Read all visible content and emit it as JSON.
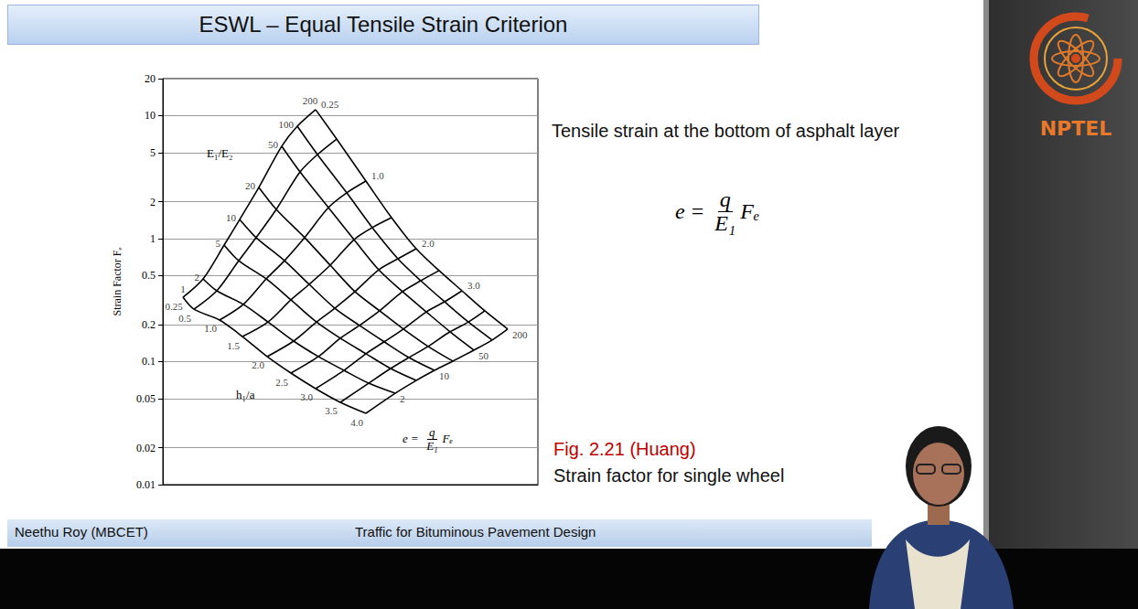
{
  "slide": {
    "title": "ESWL – Equal Tensile Strain Criterion",
    "description": "Tensile strain at the bottom of asphalt layer",
    "formula": {
      "lhs": "e",
      "relation": "=",
      "numerator": "q",
      "denominator": "E₁",
      "factor": "Fₑ"
    },
    "figure_ref": "Fig. 2.21 (Huang)",
    "caption": "Strain factor for single wheel",
    "footer_left": "Neethu Roy (MBCET)",
    "footer_center": "Traffic for Bituminous Pavement Design",
    "logo_text": "NPTEL"
  },
  "chart_data": {
    "type": "line",
    "y_label": "Strain Factor Fₑ",
    "log": "y",
    "grid": true,
    "tick_labels": "y",
    "color": "#000000",
    "xlim": [
      0,
      410
    ],
    "ylim": [
      0.01,
      20
    ],
    "yticks": [
      0.01,
      0.02,
      0.05,
      0.1,
      0.2,
      0.5,
      1,
      2,
      5,
      10,
      20
    ],
    "e1_e2_title": "E₁/E₂",
    "h1_a_title": "h₁/a",
    "h1_a_labels": [
      "0.25",
      "0.5",
      "1.0",
      "1.5",
      "2.0",
      "2.5",
      "3.0",
      "3.5",
      "4.0"
    ],
    "h1_a_end_labels": [
      "0.25",
      "1.0",
      "2.0",
      "3.0"
    ],
    "e1_e2_end_labels": [
      "2",
      "10",
      "50",
      "200"
    ],
    "e1_e2_curves": [
      {
        "label": "1",
        "x": [
          22,
          34,
          62,
          87,
          114,
          140,
          167,
          194,
          222
        ],
        "values": [
          0.334,
          0.267,
          0.218,
          0.16,
          0.11,
          0.0807,
          0.0604,
          0.0467,
          0.038
        ]
      },
      {
        "label": "2",
        "x": [
          44,
          59,
          88,
          115,
          143,
          170,
          198,
          225,
          254
        ],
        "values": [
          0.471,
          0.377,
          0.292,
          0.21,
          0.147,
          0.11,
          0.0849,
          0.0668,
          0.0553
        ]
      },
      {
        "label": "5",
        "x": [
          67,
          83,
          113,
          140,
          168,
          194,
          222,
          249,
          277
        ],
        "values": [
          0.887,
          0.662,
          0.471,
          0.318,
          0.21,
          0.155,
          0.116,
          0.0879,
          0.0703
        ]
      },
      {
        "label": "10",
        "x": [
          84,
          102,
          133,
          160,
          188,
          215,
          242,
          269,
          297
        ],
        "values": [
          1.43,
          1.02,
          0.662,
          0.425,
          0.272,
          0.197,
          0.145,
          0.108,
          0.0849
        ]
      },
      {
        "label": "20",
        "x": [
          105,
          124,
          155,
          183,
          210,
          237,
          263,
          290,
          317
        ],
        "values": [
          2.61,
          1.73,
          1.02,
          0.608,
          0.371,
          0.259,
          0.184,
          0.133,
          0.101
        ]
      },
      {
        "label": "50",
        "x": [
          130,
          150,
          181,
          209,
          236,
          262,
          288,
          314,
          340
        ],
        "values": [
          5.64,
          3.49,
          1.79,
          0.982,
          0.558,
          0.371,
          0.254,
          0.175,
          0.124
        ]
      },
      {
        "label": "100",
        "x": [
          147,
          169,
          201,
          229,
          257,
          282,
          308,
          334,
          360
        ],
        "values": [
          8.2,
          4.83,
          2.36,
          1.23,
          0.686,
          0.455,
          0.307,
          0.21,
          0.15
        ]
      },
      {
        "label": "200",
        "x": [
          167,
          190,
          222,
          250,
          277,
          302,
          327,
          352,
          377
        ],
        "values": [
          11.2,
          6.46,
          2.94,
          1.48,
          0.828,
          0.55,
          0.377,
          0.259,
          0.184
        ]
      }
    ]
  }
}
